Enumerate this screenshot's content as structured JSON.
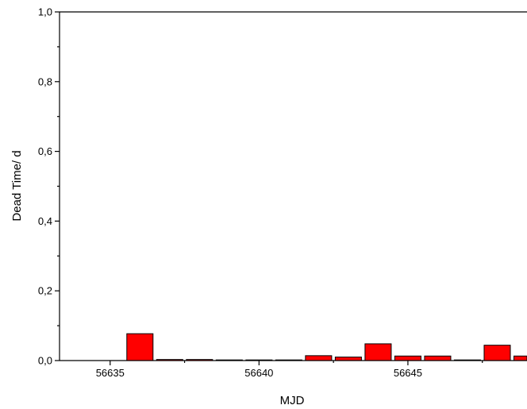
{
  "chart_data": {
    "type": "bar",
    "title": "",
    "xlabel": "MJD",
    "ylabel": "Dead Time/ d",
    "xlim": [
      56633.3,
      56649.0
    ],
    "ylim": [
      0.0,
      1.0
    ],
    "x_ticks": [
      56635,
      56640,
      56645
    ],
    "x_tick_labels": [
      "56635",
      "56640",
      "56645"
    ],
    "y_ticks": [
      0.0,
      0.2,
      0.4,
      0.6,
      0.8,
      1.0
    ],
    "y_tick_labels": [
      "0,0",
      "0,2",
      "0,4",
      "0,6",
      "0,8",
      "1,0"
    ],
    "grid": false,
    "bar_color": "#ff0000",
    "bar_edge_color": "#000000",
    "series": [
      {
        "x": [
          56636.0,
          56637.0,
          56638.0,
          56639.0,
          56640.0,
          56641.0,
          56642.0,
          56643.0,
          56644.0,
          56645.0,
          56646.0,
          56647.0,
          56648.0,
          56649.0
        ],
        "values": [
          0.077,
          0.003,
          0.003,
          0.001,
          0.001,
          0.001,
          0.014,
          0.01,
          0.048,
          0.013,
          0.013,
          0.001,
          0.044,
          0.013
        ]
      }
    ]
  }
}
